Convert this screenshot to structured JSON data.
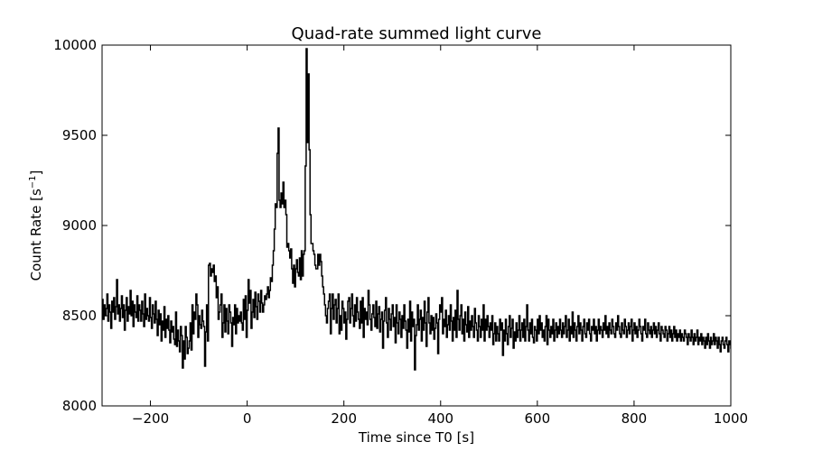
{
  "chart_data": {
    "type": "line",
    "title": "Quad-rate summed light curve",
    "xlabel": "Time since T0 [s]",
    "ylabel_prefix": "Count Rate [s",
    "ylabel_sup": "−1",
    "ylabel_suffix": "]",
    "xlim": [
      -300,
      1000
    ],
    "ylim": [
      8000,
      10000
    ],
    "xticks": [
      -200,
      0,
      200,
      400,
      600,
      800,
      1000
    ],
    "xtick_labels": [
      "−200",
      "0",
      "200",
      "400",
      "600",
      "800",
      "1000"
    ],
    "yticks": [
      8000,
      8500,
      9000,
      9500,
      10000
    ],
    "ytick_labels": [
      "8000",
      "8500",
      "9000",
      "9500",
      "10000"
    ],
    "grid": false,
    "series": [
      {
        "color": "#000000",
        "step": 2,
        "x_start": -300,
        "values": [
          8590,
          8480,
          8560,
          8500,
          8540,
          8620,
          8470,
          8560,
          8520,
          8430,
          8580,
          8520,
          8600,
          8480,
          8550,
          8700,
          8510,
          8560,
          8470,
          8540,
          8610,
          8490,
          8560,
          8420,
          8530,
          8600,
          8470,
          8550,
          8510,
          8640,
          8500,
          8580,
          8440,
          8560,
          8520,
          8490,
          8610,
          8470,
          8560,
          8530,
          8470,
          8580,
          8510,
          8440,
          8620,
          8480,
          8540,
          8500,
          8470,
          8600,
          8490,
          8430,
          8560,
          8510,
          8460,
          8580,
          8480,
          8390,
          8530,
          8450,
          8510,
          8360,
          8470,
          8420,
          8550,
          8380,
          8480,
          8430,
          8500,
          8420,
          8350,
          8470,
          8410,
          8440,
          8370,
          8340,
          8520,
          8330,
          8420,
          8360,
          8300,
          8440,
          8390,
          8210,
          8360,
          8260,
          8440,
          8380,
          8290,
          8320,
          8360,
          8460,
          8310,
          8560,
          8400,
          8520,
          8480,
          8620,
          8560,
          8380,
          8500,
          8450,
          8430,
          8530,
          8470,
          8440,
          8220,
          8410,
          8560,
          8360,
          8780,
          8790,
          8720,
          8760,
          8740,
          8780,
          8690,
          8720,
          8600,
          8660,
          8480,
          8520,
          8560,
          8620,
          8380,
          8460,
          8560,
          8410,
          8540,
          8470,
          8400,
          8560,
          8520,
          8460,
          8330,
          8490,
          8450,
          8560,
          8400,
          8540,
          8460,
          8500,
          8470,
          8520,
          8460,
          8420,
          8590,
          8480,
          8610,
          8380,
          8530,
          8700,
          8570,
          8640,
          8430,
          8520,
          8590,
          8490,
          8630,
          8550,
          8480,
          8620,
          8580,
          8520,
          8640,
          8570,
          8520,
          8560,
          8610,
          8590,
          8620,
          8660,
          8600,
          8640,
          8710,
          8690,
          8780,
          8860,
          8980,
          9120,
          9100,
          9400,
          9540,
          9140,
          9100,
          9180,
          9120,
          9240,
          9100,
          9140,
          9060,
          8880,
          8900,
          8860,
          8820,
          8870,
          8760,
          8680,
          8780,
          8660,
          8760,
          8810,
          8740,
          8720,
          8820,
          8700,
          8860,
          8720,
          8840,
          8860,
          9330,
          9980,
          9460,
          9840,
          9420,
          9060,
          8900,
          8900,
          8860,
          8840,
          8780,
          8760,
          8760,
          8840,
          8780,
          8840,
          8800,
          8720,
          8660,
          8620,
          8560,
          8500,
          8460,
          8540,
          8580,
          8620,
          8400,
          8540,
          8620,
          8480,
          8560,
          8590,
          8460,
          8540,
          8620,
          8400,
          8500,
          8420,
          8580,
          8540,
          8460,
          8520,
          8370,
          8480,
          8580,
          8600,
          8460,
          8540,
          8620,
          8500,
          8440,
          8560,
          8470,
          8600,
          8520,
          8480,
          8430,
          8580,
          8460,
          8600,
          8380,
          8540,
          8480,
          8520,
          8450,
          8640,
          8560,
          8480,
          8420,
          8510,
          8560,
          8490,
          8440,
          8580,
          8430,
          8510,
          8550,
          8410,
          8480,
          8520,
          8320,
          8470,
          8530,
          8600,
          8460,
          8380,
          8540,
          8480,
          8420,
          8510,
          8560,
          8440,
          8490,
          8350,
          8560,
          8460,
          8400,
          8520,
          8480,
          8380,
          8500,
          8430,
          8560,
          8470,
          8420,
          8320,
          8480,
          8410,
          8580,
          8360,
          8520,
          8440,
          8480,
          8200,
          8390,
          8450,
          8560,
          8420,
          8480,
          8530,
          8360,
          8490,
          8420,
          8580,
          8460,
          8330,
          8520,
          8600,
          8460,
          8400,
          8500,
          8420,
          8490,
          8370,
          8430,
          8510,
          8460,
          8290,
          8480,
          8560,
          8520,
          8600,
          8400,
          8480,
          8440,
          8530,
          8380,
          8450,
          8500,
          8420,
          8560,
          8470,
          8360,
          8490,
          8420,
          8530,
          8380,
          8640,
          8480,
          8420,
          8500,
          8560,
          8400,
          8480,
          8360,
          8520,
          8450,
          8410,
          8550,
          8380,
          8470,
          8420,
          8500,
          8440,
          8380,
          8540,
          8460,
          8420,
          8360,
          8500,
          8440,
          8380,
          8480,
          8420,
          8560,
          8360,
          8480,
          8420,
          8500,
          8440,
          8380,
          8460,
          8420,
          8500,
          8340,
          8400,
          8460,
          8360,
          8440,
          8400,
          8360,
          8480,
          8420,
          8460,
          8280,
          8420,
          8360,
          8480,
          8400,
          8340,
          8440,
          8500,
          8380,
          8430,
          8480,
          8320,
          8410,
          8360,
          8460,
          8380,
          8420,
          8500,
          8360,
          8420,
          8460,
          8380,
          8480,
          8360,
          8440,
          8560,
          8420,
          8360,
          8460,
          8400,
          8480,
          8380,
          8350,
          8440,
          8420,
          8360,
          8480,
          8400,
          8500,
          8420,
          8460,
          8380,
          8420,
          8360,
          8440,
          8500,
          8340,
          8480,
          8420,
          8380,
          8440,
          8400,
          8480,
          8360,
          8420,
          8460,
          8380,
          8440,
          8400,
          8480,
          8420,
          8380,
          8460,
          8400,
          8440,
          8500,
          8380,
          8420,
          8480,
          8360,
          8440,
          8400,
          8520,
          8380,
          8460,
          8420,
          8360,
          8440,
          8500,
          8400,
          8460,
          8420,
          8360,
          8440,
          8480,
          8400,
          8380,
          8460,
          8420,
          8480,
          8400,
          8360,
          8440,
          8420,
          8480,
          8400,
          8440,
          8360,
          8420,
          8480,
          8400,
          8440,
          8420,
          8380,
          8460,
          8420,
          8500,
          8400,
          8440,
          8380,
          8460,
          8420,
          8400,
          8480,
          8440,
          8400,
          8380,
          8460,
          8420,
          8500,
          8440,
          8400,
          8380,
          8460,
          8420,
          8400,
          8480,
          8440,
          8380,
          8420,
          8460,
          8400,
          8440,
          8480,
          8360,
          8420,
          8460,
          8400,
          8440,
          8380,
          8420,
          8480,
          8440,
          8400,
          8360,
          8440,
          8420,
          8480,
          8400,
          8380,
          8460,
          8420,
          8400,
          8440,
          8380,
          8420,
          8460,
          8400,
          8440,
          8380,
          8420,
          8460,
          8400,
          8360,
          8440,
          8420,
          8400,
          8380,
          8440,
          8420,
          8360,
          8400,
          8440,
          8380,
          8420,
          8360,
          8400,
          8440,
          8380,
          8420,
          8360,
          8400,
          8380,
          8420,
          8360,
          8400,
          8380,
          8360,
          8420,
          8400,
          8380,
          8340,
          8400,
          8380,
          8360,
          8420,
          8380,
          8340,
          8400,
          8360,
          8380,
          8420,
          8340,
          8380,
          8360,
          8400,
          8340,
          8380,
          8360,
          8320,
          8380,
          8340,
          8400,
          8360,
          8320,
          8380,
          8340,
          8360,
          8400,
          8340,
          8380,
          8360,
          8320,
          8380,
          8340,
          8300,
          8360,
          8380,
          8340,
          8320,
          8360,
          8380,
          8340,
          8300,
          8360,
          8340,
          8320,
          8380,
          8340,
          8360,
          8320,
          8340,
          8300,
          8360,
          8340,
          8320,
          8380,
          8340,
          8360,
          8320,
          8340,
          8380,
          8360,
          8340,
          8320,
          8400,
          8360,
          8340,
          8380,
          8320,
          8360,
          8340,
          8380,
          8360,
          8400,
          8340,
          8380,
          8360,
          8340,
          8400,
          8360,
          8380,
          8340,
          8420,
          8360,
          8400,
          8380,
          8360,
          8420,
          8380,
          8400,
          8360,
          8440,
          8380,
          8400,
          8360,
          8420,
          8380,
          8440,
          8400,
          8380,
          8420,
          8400
        ]
      }
    ]
  }
}
